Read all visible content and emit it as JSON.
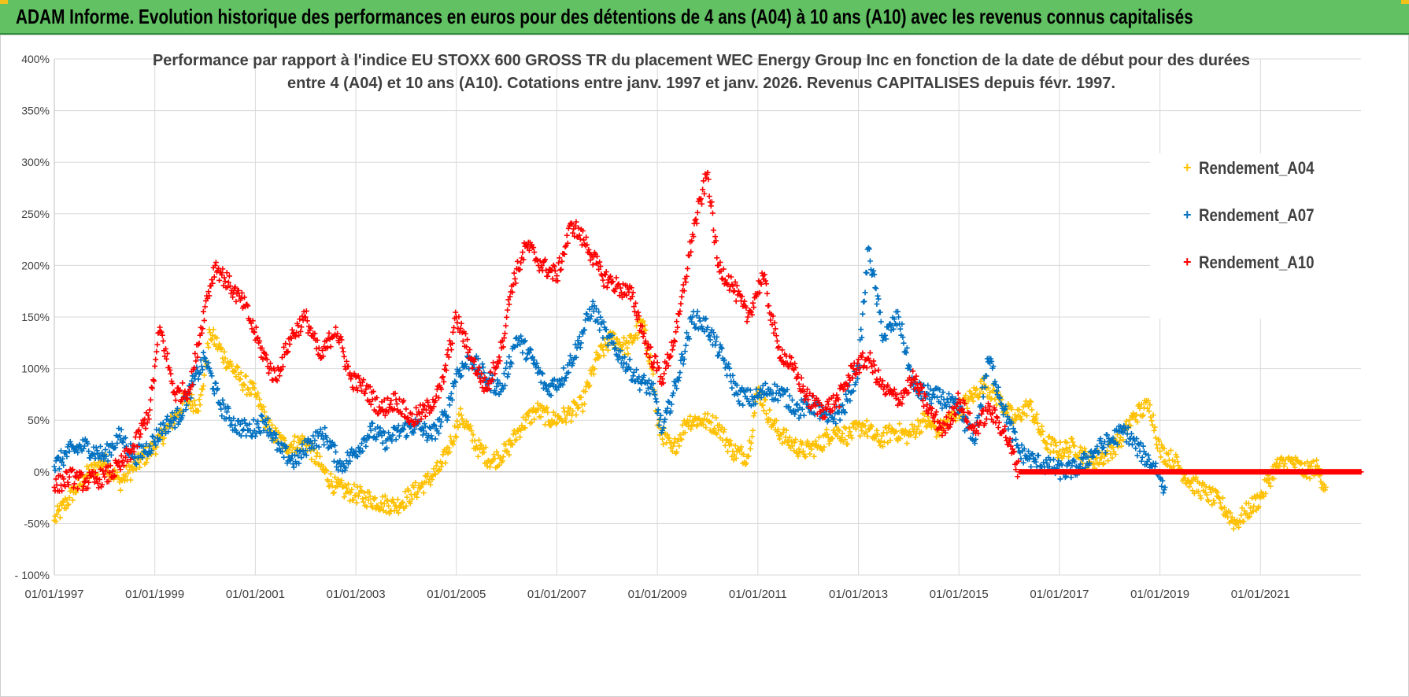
{
  "header": {
    "banner_title": "ADAM Informe. Evolution historique des performances en euros pour des détentions de 4 ans (A04) à 10 ans (A10) avec les revenus connus capitalisés"
  },
  "colors": {
    "banner_bg": "#61c163",
    "a04": "#ffc000",
    "a07": "#0070c0",
    "a10": "#ff0000",
    "grid": "#d9d9d9",
    "text": "#404040"
  },
  "chart_data": {
    "type": "scatter",
    "title_line1": "Performance par rapport à l'indice EU STOXX 600 GROSS TR  du placement WEC Energy Group Inc en fonction de la date de début pour des durées",
    "title_line2": "entre 4 (A04) et 10 ans (A10).  Cotations entre janv. 1997 et janv. 2026. Revenus CAPITALISES depuis févr. 1997.",
    "xlabel": "",
    "ylabel": "",
    "x_range": [
      1997.0,
      2023.0
    ],
    "ylim": [
      -100,
      400
    ],
    "y_ticks": [
      -100,
      -50,
      0,
      50,
      100,
      150,
      200,
      250,
      300,
      350,
      400
    ],
    "y_tick_labels": [
      "- 100%",
      "-50%",
      "0%",
      "50%",
      "100%",
      "150%",
      "200%",
      "250%",
      "300%",
      "350%",
      "400%"
    ],
    "x_ticks": [
      1997,
      1999,
      2001,
      2003,
      2005,
      2007,
      2009,
      2011,
      2013,
      2015,
      2017,
      2019,
      2021
    ],
    "x_tick_labels": [
      "01/01/1997",
      "01/01/1999",
      "01/01/2001",
      "01/01/2003",
      "01/01/2005",
      "01/01/2007",
      "01/01/2009",
      "01/01/2011",
      "01/01/2013",
      "01/01/2015",
      "01/01/2017",
      "01/01/2019",
      "01/01/2021"
    ],
    "grid": true,
    "legend_position": "right",
    "marker": "+",
    "series": [
      {
        "name": "Rendement_A04",
        "color": "#ffc000",
        "x": [
          1997.0,
          1997.3,
          1997.6,
          1998.0,
          1998.3,
          1998.6,
          1999.0,
          1999.3,
          1999.6,
          1999.9,
          2000.1,
          2000.4,
          2000.7,
          2001.0,
          2001.3,
          2001.6,
          2002.0,
          2002.3,
          2002.6,
          2002.9,
          2003.2,
          2003.5,
          2003.8,
          2004.1,
          2004.4,
          2004.7,
          2004.9,
          2005.1,
          2005.4,
          2005.7,
          2006.0,
          2006.3,
          2006.6,
          2006.9,
          2007.2,
          2007.5,
          2007.8,
          2008.1,
          2008.4,
          2008.7,
          2008.9,
          2009.0,
          2009.3,
          2009.6,
          2009.9,
          2010.2,
          2010.5,
          2010.8,
          2011.0,
          2011.3,
          2011.6,
          2011.9,
          2012.2,
          2012.5,
          2012.8,
          2013.1,
          2013.4,
          2013.7,
          2014.0,
          2014.3,
          2014.6,
          2014.9,
          2015.2,
          2015.5,
          2015.8,
          2016.1,
          2016.4,
          2016.7,
          2017.0,
          2017.3,
          2017.6,
          2017.9,
          2018.2,
          2018.5,
          2018.8,
          2019.0,
          2019.3,
          2019.6,
          2019.9,
          2020.2,
          2020.5,
          2020.8,
          2021.0,
          2021.3,
          2021.6,
          2021.9,
          2022.1,
          2022.3
        ],
        "y": [
          -47,
          -25,
          -5,
          10,
          -10,
          5,
          25,
          45,
          70,
          65,
          135,
          110,
          90,
          75,
          40,
          25,
          30,
          5,
          -15,
          -20,
          -25,
          -30,
          -33,
          -22,
          -10,
          5,
          30,
          55,
          25,
          10,
          20,
          45,
          60,
          50,
          55,
          65,
          110,
          130,
          120,
          145,
          100,
          45,
          20,
          50,
          50,
          45,
          20,
          15,
          80,
          45,
          30,
          20,
          25,
          40,
          35,
          45,
          30,
          40,
          35,
          50,
          40,
          55,
          70,
          85,
          70,
          50,
          65,
          30,
          20,
          25,
          10,
          15,
          30,
          55,
          65,
          20,
          10,
          -10,
          -20,
          -30,
          -50,
          -35,
          -25,
          5,
          10,
          0,
          5,
          -15
        ]
      },
      {
        "name": "Rendement_A07",
        "color": "#0070c0",
        "x": [
          1997.0,
          1997.3,
          1997.6,
          1998.0,
          1998.3,
          1998.6,
          1998.9,
          1999.2,
          1999.5,
          1999.8,
          2000.0,
          2000.3,
          2000.6,
          2000.9,
          2001.2,
          2001.5,
          2001.8,
          2002.1,
          2002.4,
          2002.7,
          2003.0,
          2003.3,
          2003.6,
          2003.9,
          2004.2,
          2004.5,
          2004.8,
          2005.0,
          2005.3,
          2005.6,
          2005.9,
          2006.2,
          2006.5,
          2006.8,
          2007.1,
          2007.4,
          2007.7,
          2008.0,
          2008.3,
          2008.6,
          2008.9,
          2009.1,
          2009.4,
          2009.7,
          2010.0,
          2010.3,
          2010.6,
          2010.9,
          2011.2,
          2011.5,
          2011.8,
          2012.1,
          2012.4,
          2012.7,
          2013.0,
          2013.2,
          2013.5,
          2013.8,
          2014.1,
          2014.4,
          2014.7,
          2015.0,
          2015.3,
          2015.6,
          2015.9,
          2016.2,
          2016.5,
          2016.8,
          2017.1,
          2017.4,
          2017.7,
          2018.0,
          2018.3,
          2018.6,
          2018.9,
          2019.1
        ],
        "y": [
          5,
          20,
          25,
          15,
          35,
          15,
          25,
          45,
          55,
          90,
          110,
          65,
          45,
          40,
          50,
          20,
          10,
          30,
          35,
          5,
          20,
          40,
          30,
          40,
          45,
          35,
          55,
          95,
          110,
          90,
          80,
          130,
          110,
          80,
          90,
          120,
          160,
          130,
          110,
          90,
          80,
          40,
          90,
          150,
          140,
          110,
          75,
          70,
          80,
          75,
          60,
          65,
          50,
          60,
          100,
          217,
          130,
          150,
          80,
          75,
          70,
          60,
          30,
          110,
          60,
          20,
          10,
          5,
          0,
          5,
          20,
          30,
          40,
          20,
          5,
          -15
        ]
      },
      {
        "name": "Rendement_A10",
        "color": "#ff0000",
        "x": [
          1997.0,
          1997.3,
          1997.6,
          1998.0,
          1998.3,
          1998.6,
          1998.9,
          1999.1,
          1999.4,
          1999.7,
          2000.0,
          2000.2,
          2000.5,
          2000.8,
          2001.1,
          2001.4,
          2001.7,
          2002.0,
          2002.3,
          2002.6,
          2002.9,
          2003.2,
          2003.5,
          2003.8,
          2004.1,
          2004.4,
          2004.7,
          2005.0,
          2005.3,
          2005.6,
          2005.9,
          2006.1,
          2006.4,
          2006.7,
          2007.0,
          2007.3,
          2007.6,
          2007.9,
          2008.2,
          2008.5,
          2008.8,
          2009.1,
          2009.4,
          2009.7,
          2010.0,
          2010.2,
          2010.5,
          2010.8,
          2011.1,
          2011.4,
          2011.7,
          2012.0,
          2012.3,
          2012.6,
          2012.9,
          2013.2,
          2013.5,
          2013.8,
          2014.1,
          2014.4,
          2014.7,
          2015.0,
          2015.3,
          2015.6,
          2015.9,
          2016.2,
          2016.7,
          2017.2,
          2017.7,
          2018.2,
          2018.7,
          2019.2,
          2019.7,
          2020.2,
          2020.7,
          2021.2,
          2021.7,
          2022.2,
          2022.7,
          2023.0
        ],
        "y": [
          -15,
          -5,
          -10,
          -5,
          5,
          25,
          60,
          140,
          75,
          80,
          160,
          200,
          180,
          160,
          120,
          90,
          130,
          150,
          110,
          140,
          90,
          80,
          60,
          70,
          50,
          60,
          80,
          150,
          110,
          80,
          120,
          180,
          220,
          200,
          190,
          240,
          220,
          190,
          180,
          170,
          120,
          90,
          140,
          230,
          290,
          200,
          180,
          150,
          190,
          120,
          100,
          70,
          60,
          70,
          100,
          110,
          80,
          70,
          90,
          60,
          40,
          70,
          40,
          60,
          40,
          0,
          0,
          0,
          0,
          0,
          0,
          0,
          0,
          0,
          0,
          0,
          0,
          0,
          0,
          0
        ]
      }
    ]
  }
}
